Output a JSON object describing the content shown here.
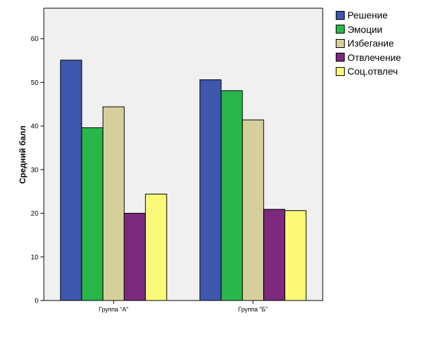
{
  "chart_data": {
    "type": "bar",
    "categories": [
      "Группа \"А\"",
      "Группа \"Б\""
    ],
    "series": [
      {
        "name": "Решение",
        "color": "#3d57ac",
        "values": [
          55.1,
          50.6
        ]
      },
      {
        "name": "Эмоции",
        "color": "#29b64a",
        "values": [
          39.6,
          48.1
        ]
      },
      {
        "name": "Избегание",
        "color": "#d5cf9c",
        "values": [
          44.4,
          41.4
        ]
      },
      {
        "name": "Отвлечение",
        "color": "#7b2a7d",
        "values": [
          20.0,
          20.9
        ]
      },
      {
        "name": "Соц.отвлеч",
        "color": "#fafa78",
        "values": [
          24.4,
          20.6
        ]
      }
    ],
    "ylabel": "Средний балл",
    "xlabel": "",
    "ylim": [
      0,
      67
    ],
    "yticks": [
      0,
      10,
      20,
      30,
      40,
      50,
      60
    ],
    "grid": false,
    "legend_position": "top-right",
    "plot_background": "#f0f0f0"
  }
}
